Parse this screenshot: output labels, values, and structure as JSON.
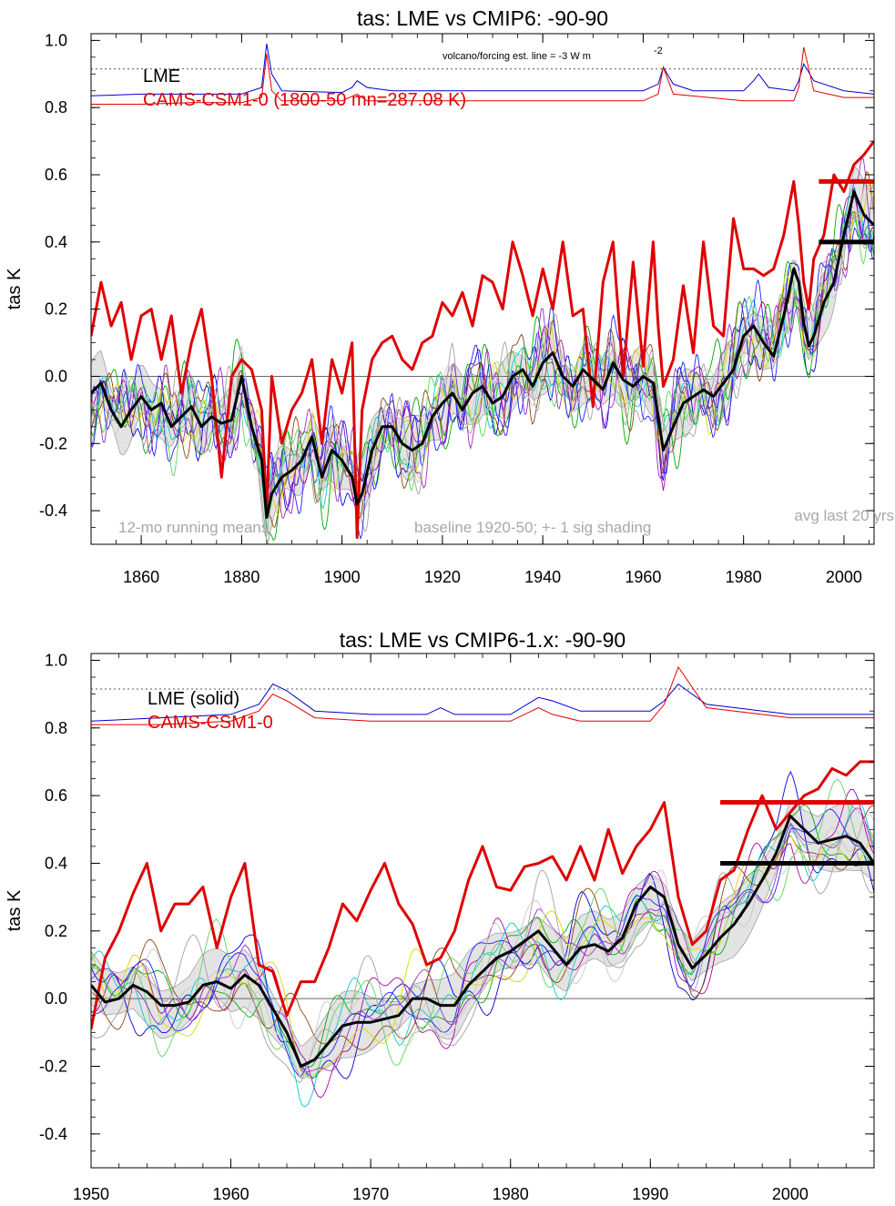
{
  "chart_data": [
    {
      "type": "line",
      "title": "tas: LME vs CMIP6: -90-90",
      "ylabel": "tas K",
      "xlim": [
        1850,
        2006
      ],
      "ylim": [
        -0.5,
        1.02
      ],
      "x_ticks": [
        1860,
        1880,
        1900,
        1920,
        1940,
        1960,
        1980,
        2000
      ],
      "y_ticks": [
        {
          "v": 1.0,
          "label": "1.0"
        },
        {
          "v": 0.8,
          "label": "0.8"
        },
        {
          "v": 0.6,
          "label": "0.6"
        },
        {
          "v": 0.4,
          "label": "0.4"
        },
        {
          "v": 0.2,
          "label": "0.2"
        },
        {
          "v": 0.0,
          "label": "0.0"
        },
        {
          "v": -0.2,
          "label": "-0.2"
        },
        {
          "v": -0.4,
          "label": "-0.4"
        }
      ],
      "legend": [
        {
          "label": "LME",
          "color": "#000000"
        },
        {
          "label": "CAMS-CSM1-0 (1800-50 mn=287.08 K)",
          "color": "#e00000"
        }
      ],
      "annotations": {
        "forcing": "volcano/forcing est.       line = -3 W m",
        "forcing_sup": "-2",
        "bottom_left": "12-mo running means",
        "bottom_mid": "baseline 1920-50; +- 1 sig shading",
        "bottom_right": "avg last 20 yrs"
      },
      "forcing_ref_line": 0.915,
      "series": [
        {
          "role": "lme_mean",
          "color": "#000000",
          "x": [
            1850,
            1852,
            1854,
            1856,
            1858,
            1860,
            1862,
            1864,
            1866,
            1868,
            1870,
            1872,
            1874,
            1876,
            1878,
            1880,
            1882,
            1884,
            1885,
            1886,
            1888,
            1890,
            1892,
            1894,
            1896,
            1898,
            1900,
            1902,
            1903,
            1904,
            1906,
            1908,
            1910,
            1912,
            1914,
            1916,
            1918,
            1920,
            1922,
            1924,
            1926,
            1928,
            1930,
            1932,
            1934,
            1936,
            1938,
            1940,
            1942,
            1944,
            1946,
            1948,
            1950,
            1952,
            1954,
            1956,
            1958,
            1960,
            1962,
            1963,
            1964,
            1966,
            1968,
            1970,
            1972,
            1974,
            1976,
            1978,
            1980,
            1982,
            1984,
            1986,
            1988,
            1990,
            1991,
            1992,
            1993,
            1994,
            1996,
            1998,
            2000,
            2002,
            2004,
            2006
          ],
          "values": [
            -0.05,
            -0.02,
            -0.1,
            -0.15,
            -0.1,
            -0.06,
            -0.1,
            -0.08,
            -0.15,
            -0.12,
            -0.09,
            -0.15,
            -0.12,
            -0.14,
            -0.13,
            0,
            -0.15,
            -0.25,
            -0.42,
            -0.35,
            -0.3,
            -0.28,
            -0.25,
            -0.18,
            -0.3,
            -0.22,
            -0.25,
            -0.3,
            -0.38,
            -0.35,
            -0.22,
            -0.15,
            -0.15,
            -0.2,
            -0.22,
            -0.2,
            -0.12,
            -0.08,
            -0.05,
            -0.1,
            -0.05,
            -0.03,
            -0.08,
            -0.06,
            0.0,
            0.02,
            -0.03,
            0.04,
            0.07,
            0.0,
            -0.03,
            0.02,
            -0.01,
            -0.04,
            0.04,
            -0.01,
            -0.03,
            0.0,
            -0.02,
            -0.12,
            -0.22,
            -0.15,
            -0.08,
            -0.06,
            -0.04,
            -0.06,
            -0.02,
            0.02,
            0.12,
            0.15,
            0.1,
            0.06,
            0.18,
            0.32,
            0.28,
            0.16,
            0.09,
            0.12,
            0.22,
            0.28,
            0.42,
            0.55,
            0.48,
            0.45
          ]
        },
        {
          "role": "cams",
          "color": "#e00000",
          "x": [
            1850,
            1852,
            1854,
            1856,
            1858,
            1860,
            1862,
            1864,
            1866,
            1868,
            1870,
            1872,
            1874,
            1876,
            1878,
            1880,
            1882,
            1884,
            1885,
            1886,
            1888,
            1890,
            1892,
            1894,
            1896,
            1898,
            1900,
            1902,
            1903,
            1904,
            1906,
            1908,
            1910,
            1912,
            1914,
            1916,
            1918,
            1920,
            1922,
            1924,
            1926,
            1928,
            1930,
            1932,
            1934,
            1936,
            1938,
            1940,
            1942,
            1944,
            1946,
            1948,
            1950,
            1952,
            1954,
            1956,
            1958,
            1960,
            1962,
            1963,
            1964,
            1966,
            1968,
            1970,
            1972,
            1974,
            1976,
            1978,
            1980,
            1982,
            1984,
            1986,
            1988,
            1990,
            1991,
            1992,
            1993,
            1994,
            1996,
            1998,
            2000,
            2002,
            2004,
            2006
          ],
          "values": [
            0.12,
            0.28,
            0.15,
            0.22,
            0.05,
            0.18,
            0.2,
            0.05,
            0.18,
            -0.05,
            0.1,
            0.2,
            0.0,
            -0.3,
            0.0,
            0.05,
            0.02,
            -0.1,
            -0.4,
            0.0,
            -0.2,
            -0.1,
            -0.05,
            0.05,
            -0.2,
            0.05,
            -0.05,
            0.1,
            -0.48,
            -0.1,
            0.05,
            0.1,
            0.12,
            0.05,
            0.02,
            0.1,
            0.12,
            0.22,
            0.18,
            0.25,
            0.15,
            0.3,
            0.28,
            0.2,
            0.4,
            0.3,
            0.18,
            0.32,
            0.2,
            0.4,
            0.18,
            0.2,
            -0.09,
            0.28,
            0.4,
            0.0,
            0.34,
            0.03,
            0.4,
            0.15,
            -0.03,
            0.05,
            0.27,
            0.07,
            0.4,
            0.15,
            0.12,
            0.47,
            0.32,
            0.32,
            0.3,
            0.32,
            0.42,
            0.58,
            0.45,
            0.28,
            0.2,
            0.35,
            0.42,
            0.6,
            0.55,
            0.63,
            0.66,
            0.7
          ]
        }
      ],
      "avg_last_20yrs": {
        "lme": 0.4,
        "cams": 0.58
      },
      "forcing_series": [
        {
          "color": "#0000d0",
          "x": [
            1850,
            1860,
            1870,
            1880,
            1884,
            1885,
            1886,
            1888,
            1900,
            1902,
            1903,
            1905,
            1910,
            1920,
            1940,
            1960,
            1963,
            1964,
            1966,
            1970,
            1980,
            1982,
            1983,
            1985,
            1990,
            1991,
            1992,
            1994,
            2000,
            2006
          ],
          "values": [
            0.835,
            0.84,
            0.84,
            0.84,
            0.86,
            0.99,
            0.9,
            0.85,
            0.845,
            0.86,
            0.88,
            0.86,
            0.85,
            0.85,
            0.85,
            0.85,
            0.87,
            0.92,
            0.87,
            0.85,
            0.85,
            0.88,
            0.9,
            0.86,
            0.85,
            0.88,
            0.93,
            0.88,
            0.85,
            0.84
          ]
        },
        {
          "color": "#e00000",
          "x": [
            1850,
            1860,
            1870,
            1880,
            1884,
            1885,
            1886,
            1888,
            1900,
            1903,
            1905,
            1920,
            1940,
            1960,
            1963,
            1964,
            1966,
            1980,
            1990,
            1991,
            1992,
            1994,
            2000,
            2006
          ],
          "values": [
            0.81,
            0.81,
            0.815,
            0.815,
            0.83,
            0.96,
            0.85,
            0.82,
            0.82,
            0.84,
            0.82,
            0.82,
            0.82,
            0.82,
            0.84,
            0.92,
            0.84,
            0.82,
            0.82,
            0.86,
            0.98,
            0.85,
            0.83,
            0.83
          ]
        }
      ]
    },
    {
      "type": "line",
      "title": "tas: LME vs CMIP6-1.x: -90-90",
      "ylabel": "tas K",
      "xlim": [
        1950,
        2006
      ],
      "ylim": [
        -0.5,
        1.02
      ],
      "x_ticks": [
        1950,
        1960,
        1970,
        1980,
        1990,
        2000
      ],
      "y_ticks": [
        {
          "v": 1.0,
          "label": "1.0"
        },
        {
          "v": 0.8,
          "label": "0.8"
        },
        {
          "v": 0.6,
          "label": "0.6"
        },
        {
          "v": 0.4,
          "label": "0.4"
        },
        {
          "v": 0.2,
          "label": "0.2"
        },
        {
          "v": 0.0,
          "label": "0.0"
        },
        {
          "v": -0.2,
          "label": "-0.2"
        },
        {
          "v": -0.4,
          "label": "-0.4"
        }
      ],
      "legend": [
        {
          "label": "LME (solid)",
          "color": "#000000"
        },
        {
          "label": "CAMS-CSM1-0",
          "color": "#e00000"
        }
      ],
      "forcing_ref_line": 0.915,
      "series": [
        {
          "role": "lme_mean",
          "color": "#000000",
          "x": [
            1950,
            1951,
            1952,
            1953,
            1954,
            1955,
            1956,
            1957,
            1958,
            1959,
            1960,
            1961,
            1962,
            1963,
            1964,
            1965,
            1966,
            1967,
            1968,
            1969,
            1970,
            1971,
            1972,
            1973,
            1974,
            1975,
            1976,
            1977,
            1978,
            1979,
            1980,
            1981,
            1982,
            1983,
            1984,
            1985,
            1986,
            1987,
            1988,
            1989,
            1990,
            1991,
            1992,
            1993,
            1994,
            1995,
            1996,
            1997,
            1998,
            1999,
            2000,
            2001,
            2002,
            2003,
            2004,
            2005,
            2006
          ],
          "values": [
            0.04,
            -0.01,
            0.0,
            0.04,
            0.02,
            -0.02,
            -0.02,
            -0.01,
            0.04,
            0.05,
            0.03,
            0.07,
            0.04,
            -0.03,
            -0.1,
            -0.2,
            -0.18,
            -0.13,
            -0.08,
            -0.07,
            -0.07,
            -0.06,
            -0.05,
            0.0,
            0.0,
            -0.02,
            -0.02,
            0.04,
            0.08,
            0.12,
            0.14,
            0.17,
            0.2,
            0.15,
            0.1,
            0.15,
            0.16,
            0.14,
            0.18,
            0.28,
            0.33,
            0.3,
            0.16,
            0.09,
            0.13,
            0.18,
            0.22,
            0.28,
            0.35,
            0.43,
            0.54,
            0.5,
            0.46,
            0.47,
            0.48,
            0.46,
            0.4
          ]
        },
        {
          "role": "cams",
          "color": "#e00000",
          "x": [
            1950,
            1951,
            1952,
            1953,
            1954,
            1955,
            1956,
            1957,
            1958,
            1959,
            1960,
            1961,
            1962,
            1963,
            1964,
            1965,
            1966,
            1967,
            1968,
            1969,
            1970,
            1971,
            1972,
            1973,
            1974,
            1975,
            1976,
            1977,
            1978,
            1979,
            1980,
            1981,
            1982,
            1983,
            1984,
            1985,
            1986,
            1987,
            1988,
            1989,
            1990,
            1991,
            1992,
            1993,
            1994,
            1995,
            1996,
            1997,
            1998,
            1999,
            2000,
            2001,
            2002,
            2003,
            2004,
            2005,
            2006
          ],
          "values": [
            -0.09,
            0.12,
            0.2,
            0.31,
            0.4,
            0.2,
            0.28,
            0.28,
            0.33,
            0.15,
            0.3,
            0.4,
            0.1,
            0.08,
            -0.05,
            0.05,
            0.05,
            0.15,
            0.28,
            0.23,
            0.32,
            0.4,
            0.28,
            0.22,
            0.1,
            0.12,
            0.2,
            0.35,
            0.45,
            0.33,
            0.32,
            0.39,
            0.4,
            0.42,
            0.35,
            0.45,
            0.35,
            0.5,
            0.37,
            0.45,
            0.5,
            0.58,
            0.3,
            0.16,
            0.2,
            0.35,
            0.38,
            0.5,
            0.6,
            0.5,
            0.55,
            0.6,
            0.62,
            0.68,
            0.66,
            0.7,
            0.7
          ]
        }
      ],
      "avg_last_20yrs": {
        "lme": 0.4,
        "cams": 0.58
      },
      "forcing_series": [
        {
          "color": "#0000d0",
          "x": [
            1950,
            1955,
            1960,
            1962,
            1963,
            1964,
            1966,
            1970,
            1974,
            1975,
            1976,
            1980,
            1982,
            1983,
            1985,
            1990,
            1991,
            1992,
            1994,
            2000,
            2006
          ],
          "values": [
            0.82,
            0.83,
            0.84,
            0.87,
            0.93,
            0.91,
            0.85,
            0.84,
            0.84,
            0.86,
            0.84,
            0.84,
            0.89,
            0.88,
            0.85,
            0.85,
            0.88,
            0.93,
            0.87,
            0.84,
            0.84
          ]
        },
        {
          "color": "#e00000",
          "x": [
            1950,
            1955,
            1960,
            1962,
            1963,
            1964,
            1966,
            1970,
            1980,
            1982,
            1983,
            1985,
            1990,
            1991,
            1992,
            1994,
            2000,
            2006
          ],
          "values": [
            0.81,
            0.81,
            0.82,
            0.85,
            0.9,
            0.88,
            0.83,
            0.82,
            0.82,
            0.86,
            0.84,
            0.82,
            0.82,
            0.87,
            0.98,
            0.86,
            0.83,
            0.83
          ]
        }
      ]
    }
  ]
}
